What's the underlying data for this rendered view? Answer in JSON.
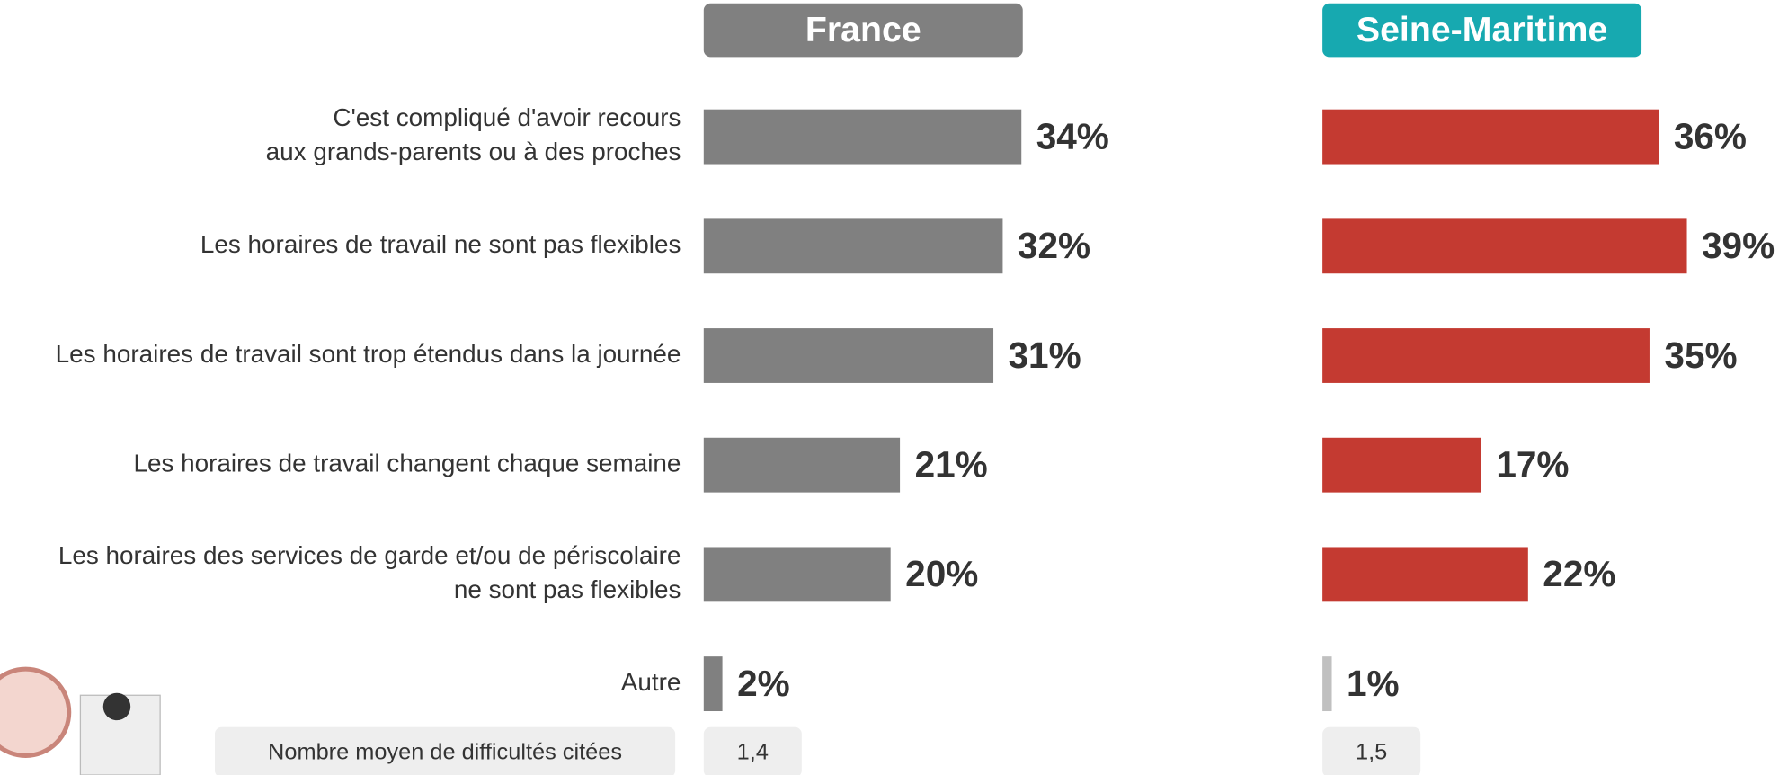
{
  "chart_data": [
    {
      "type": "bar",
      "title": "France",
      "categories": [
        "C'est compliqué d'avoir recours\naux grands-parents ou à des proches",
        "Les horaires de travail ne sont pas flexibles",
        "Les horaires de travail sont trop étendus dans la journée",
        "Les horaires de travail changent chaque semaine",
        "Les horaires des services de garde et/ou de périscolaire\nne sont pas flexibles",
        "Autre"
      ],
      "values": [
        34,
        32,
        31,
        21,
        20,
        2
      ],
      "value_labels": [
        "34%",
        "32%",
        "31%",
        "21%",
        "20%",
        "2%"
      ],
      "colors": [
        "#808080",
        "#808080",
        "#808080",
        "#808080",
        "#808080",
        "#808080"
      ],
      "title_color": "#808080"
    },
    {
      "type": "bar",
      "title": "Seine-Maritime",
      "categories": [
        "C'est compliqué d'avoir recours\naux grands-parents ou à des proches",
        "Les horaires de travail ne sont pas flexibles",
        "Les horaires de travail sont trop étendus dans la journée",
        "Les horaires de travail changent chaque semaine",
        "Les horaires des services de garde et/ou de périscolaire\nne sont pas flexibles",
        "Autre"
      ],
      "values": [
        36,
        39,
        35,
        17,
        22,
        1
      ],
      "value_labels": [
        "36%",
        "39%",
        "35%",
        "17%",
        "22%",
        "1%"
      ],
      "colors": [
        "#c43a31",
        "#c43a31",
        "#c43a31",
        "#c43a31",
        "#c43a31",
        "#c0c0c0"
      ],
      "title_color": "#17a9b0"
    }
  ],
  "summary": {
    "label": "Nombre moyen de difficultés citées",
    "values": [
      1.4,
      1.5
    ],
    "value_labels": [
      "1,4",
      "1,5"
    ]
  }
}
